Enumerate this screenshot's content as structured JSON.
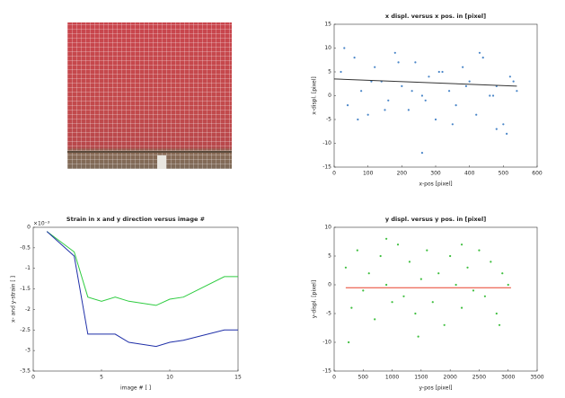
{
  "chart_data": [
    {
      "type": "scatter",
      "title": "x displ. versus x pos. in [pixel]",
      "x_label": "x-pos [pixel]",
      "y_label": "x-displ. [pixel]",
      "xlim": [
        0,
        600
      ],
      "xticks": [
        0,
        100,
        200,
        300,
        400,
        500,
        600
      ],
      "ylim": [
        -15,
        15
      ],
      "yticks": [
        -15,
        -10,
        -5,
        0,
        5,
        10,
        15
      ],
      "points": {
        "color": "#4a86c8",
        "x": [
          20,
          40,
          60,
          80,
          100,
          120,
          140,
          160,
          180,
          200,
          220,
          240,
          260,
          280,
          300,
          320,
          340,
          360,
          380,
          400,
          420,
          440,
          460,
          480,
          500,
          520,
          540,
          30,
          70,
          110,
          150,
          190,
          230,
          270,
          310,
          350,
          390,
          430,
          470,
          510,
          530,
          260,
          480
        ],
        "y": [
          5,
          -2,
          8,
          1,
          -4,
          6,
          3,
          -1,
          9,
          2,
          -3,
          7,
          0,
          4,
          -5,
          5,
          1,
          -2,
          6,
          3,
          -4,
          8,
          0,
          2,
          -6,
          4,
          1,
          10,
          -5,
          3,
          -3,
          7,
          1,
          -1,
          5,
          -6,
          2,
          9,
          0,
          -8,
          3,
          -12,
          -7
        ]
      },
      "fit": {
        "color": "#333333",
        "x": [
          0,
          540
        ],
        "y": [
          3.5,
          2
        ]
      }
    },
    {
      "type": "line",
      "title": "Strain in x and y direction versus image #",
      "x_label": "image # [ ]",
      "y_label": "x- and y-strain [ ]",
      "y_exponent": "×10⁻³",
      "xlim": [
        0,
        15
      ],
      "xticks": [
        0,
        5,
        10,
        15
      ],
      "ylim": [
        -3.5,
        0
      ],
      "yticks": [
        -3.5,
        -3,
        -2.5,
        -2,
        -1.5,
        -1,
        -0.5,
        0
      ],
      "series": [
        {
          "color": "#2ecc40",
          "x": [
            1,
            3,
            4,
            5,
            6,
            7,
            9,
            10,
            11,
            14,
            15
          ],
          "values": [
            -0.1,
            -0.6,
            -1.7,
            -1.8,
            -1.7,
            -1.8,
            -1.9,
            -1.75,
            -1.7,
            -1.2,
            -1.2
          ]
        },
        {
          "color": "#1f2fa8",
          "x": [
            1,
            3,
            4,
            5,
            6,
            7,
            9,
            10,
            11,
            14,
            15
          ],
          "values": [
            -0.1,
            -0.7,
            -2.6,
            -2.6,
            -2.6,
            -2.8,
            -2.9,
            -2.8,
            -2.75,
            -2.5,
            -2.5
          ]
        }
      ]
    },
    {
      "type": "scatter",
      "title": "y displ. versus y pos. in [pixel]",
      "x_label": "y-pos [pixel]",
      "y_label": "y-displ. [pixel]",
      "xlim": [
        0,
        3500
      ],
      "xticks": [
        0,
        500,
        1000,
        1500,
        2000,
        2500,
        3000,
        3500
      ],
      "ylim": [
        -15,
        10
      ],
      "yticks": [
        -15,
        -10,
        -5,
        0,
        5,
        10
      ],
      "points": {
        "color": "#3fbf3f",
        "x": [
          200,
          300,
          400,
          500,
          600,
          700,
          800,
          900,
          1000,
          1100,
          1200,
          1300,
          1400,
          1500,
          1600,
          1700,
          1800,
          1900,
          2000,
          2100,
          2200,
          2300,
          2400,
          2500,
          2600,
          2700,
          2800,
          2900,
          3000,
          250,
          900,
          1450,
          2200,
          2850
        ],
        "y": [
          3,
          -4,
          6,
          -1,
          2,
          -6,
          5,
          0,
          -3,
          7,
          -2,
          4,
          -5,
          1,
          6,
          -3,
          2,
          -7,
          5,
          0,
          -4,
          3,
          -1,
          6,
          -2,
          4,
          -5,
          2,
          0,
          -10,
          8,
          -9,
          7,
          -7
        ]
      },
      "fit": {
        "color": "#e8402a",
        "x": [
          200,
          3050
        ],
        "y": [
          -0.5,
          -0.5
        ]
      }
    }
  ]
}
